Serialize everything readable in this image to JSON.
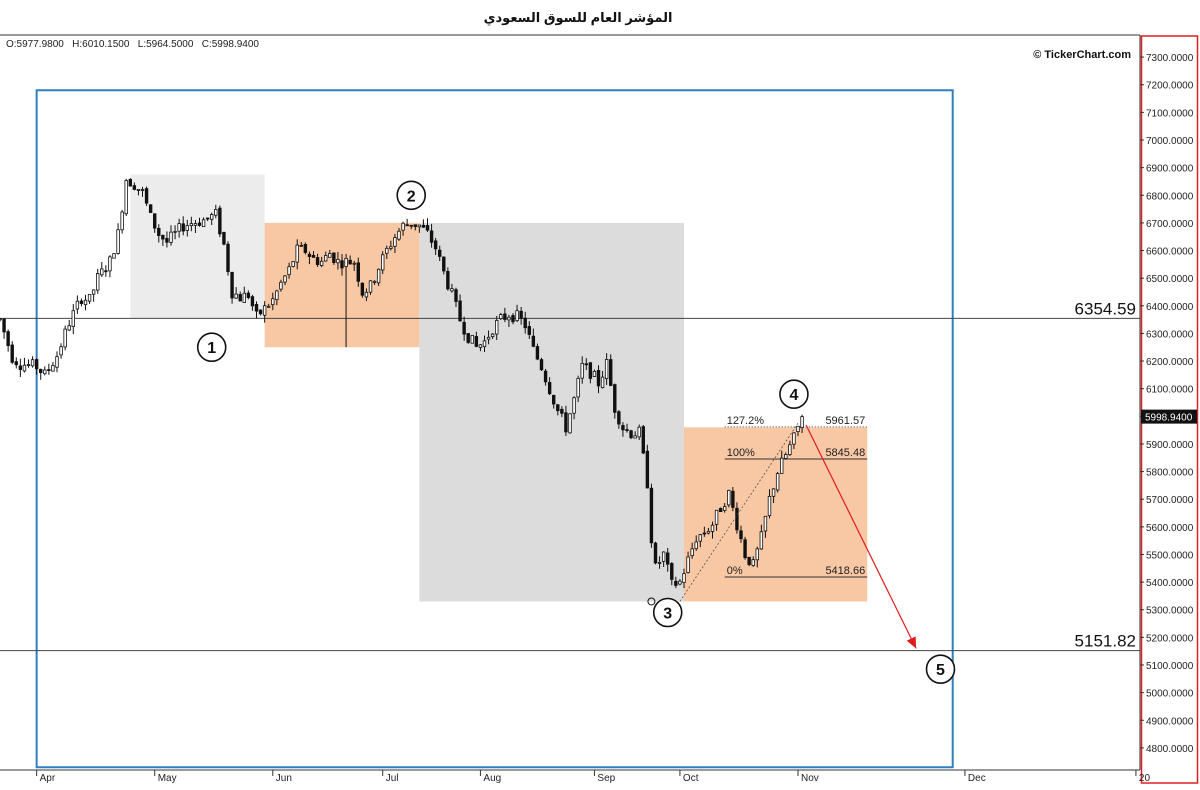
{
  "window": {
    "title": "المؤشر العام للسوق السعودي",
    "ohlc_readout": "O:5977.9800   H:6010.1500   L:5964.5000   C:5998.9400",
    "watermark": "© TickerChart.com"
  },
  "chart_data": {
    "type": "candlestick",
    "title": "المؤشر العام للسوق السعودي",
    "y_axis": {
      "ylim": [
        4720,
        7380
      ],
      "ticks": [
        4800,
        4900,
        5000,
        5100,
        5200,
        5300,
        5400,
        5500,
        5600,
        5700,
        5800,
        5900,
        6000,
        6100,
        6200,
        6300,
        6400,
        6500,
        6600,
        6700,
        6800,
        6900,
        7000,
        7100,
        7200,
        7300
      ],
      "tick_format": "4dec",
      "position": "right"
    },
    "x_axis": {
      "xlim": [
        0,
        280
      ],
      "months": [
        {
          "label": "Apr",
          "x": 9
        },
        {
          "label": "May",
          "x": 38
        },
        {
          "label": "Jun",
          "x": 67
        },
        {
          "label": "Jul",
          "x": 94
        },
        {
          "label": "Aug",
          "x": 118
        },
        {
          "label": "Sep",
          "x": 146
        },
        {
          "label": "Oct",
          "x": 167
        },
        {
          "label": "Nov",
          "x": 196
        },
        {
          "label": "Dec",
          "x": 237
        },
        {
          "label": "20",
          "x": 279
        }
      ]
    },
    "last_price": {
      "value": 5998.94,
      "label": "5998.9400"
    },
    "horizontal_levels": [
      {
        "value": 6354.59,
        "label": "6354.59"
      },
      {
        "value": 5151.82,
        "label": "5151.82"
      }
    ],
    "wave_labels": [
      {
        "text": "1",
        "x": 52,
        "y": 6250
      },
      {
        "text": "2",
        "x": 101,
        "y": 6800
      },
      {
        "text": "3",
        "x": 164,
        "y": 5290
      },
      {
        "text": "4",
        "x": 195,
        "y": 6080
      },
      {
        "text": "5",
        "x": 231,
        "y": 5085
      }
    ],
    "zones": [
      {
        "kind": "frame",
        "x1": 9,
        "x2": 234,
        "y1": 4730,
        "y2": 7180,
        "color": "#2f7fc1"
      },
      {
        "kind": "gray",
        "x1": 32,
        "x2": 65,
        "y1": 6354,
        "y2": 6875,
        "color": "#ececec"
      },
      {
        "kind": "orange",
        "x1": 65,
        "x2": 103,
        "y1": 6250,
        "y2": 6700,
        "color": "#f8c7a3"
      },
      {
        "kind": "gray",
        "x1": 103,
        "x2": 168,
        "y1": 5330,
        "y2": 6700,
        "color": "#dcdcdc"
      },
      {
        "kind": "orange",
        "x1": 168,
        "x2": 213,
        "y1": 5330,
        "y2": 5960,
        "color": "#f8c7a3"
      }
    ],
    "fibonacci": {
      "x1": 178,
      "x2": 213,
      "levels": [
        {
          "pct": "127.2%",
          "value": 5961.57,
          "label": "5961.57",
          "style": "dotted"
        },
        {
          "pct": "100%",
          "value": 5845.48,
          "label": "5845.48",
          "style": "solid"
        },
        {
          "pct": "0%",
          "value": 5418.66,
          "label": "5418.66",
          "style": "solid"
        }
      ]
    },
    "arrow": {
      "from": {
        "x": 198,
        "y": 5968
      },
      "to": {
        "x": 225,
        "y": 5160
      },
      "color": "#e11b1b"
    },
    "price_path": [
      [
        0,
        6350
      ],
      [
        3,
        6215
      ],
      [
        5,
        6190
      ],
      [
        9,
        6180
      ],
      [
        11,
        6150
      ],
      [
        14,
        6220
      ],
      [
        17,
        6340
      ],
      [
        20,
        6430
      ],
      [
        22,
        6420
      ],
      [
        24,
        6500
      ],
      [
        27,
        6560
      ],
      [
        29,
        6660
      ],
      [
        31,
        6860
      ],
      [
        33,
        6840
      ],
      [
        35,
        6810
      ],
      [
        37,
        6720
      ],
      [
        39,
        6660
      ],
      [
        41,
        6630
      ],
      [
        43,
        6660
      ],
      [
        45,
        6690
      ],
      [
        47,
        6700
      ],
      [
        50,
        6710
      ],
      [
        53,
        6730
      ],
      [
        55,
        6620
      ],
      [
        57,
        6450
      ],
      [
        59,
        6430
      ],
      [
        61,
        6440
      ],
      [
        63,
        6360
      ],
      [
        65,
        6390
      ],
      [
        67,
        6420
      ],
      [
        69,
        6480
      ],
      [
        71,
        6530
      ],
      [
        73,
        6600
      ],
      [
        75,
        6600
      ],
      [
        77,
        6570
      ],
      [
        79,
        6560
      ],
      [
        81,
        6590
      ],
      [
        83,
        6560
      ],
      [
        85,
        6560
      ],
      [
        87,
        6560
      ],
      [
        89,
        6450
      ],
      [
        91,
        6470
      ],
      [
        93,
        6540
      ],
      [
        95,
        6600
      ],
      [
        97,
        6650
      ],
      [
        99,
        6690
      ],
      [
        101,
        6700
      ],
      [
        103,
        6690
      ],
      [
        105,
        6660
      ],
      [
        107,
        6610
      ],
      [
        109,
        6520
      ],
      [
        111,
        6440
      ],
      [
        113,
        6350
      ],
      [
        115,
        6290
      ],
      [
        117,
        6250
      ],
      [
        119,
        6270
      ],
      [
        121,
        6320
      ],
      [
        123,
        6350
      ],
      [
        125,
        6370
      ],
      [
        127,
        6360
      ],
      [
        129,
        6330
      ],
      [
        131,
        6240
      ],
      [
        133,
        6180
      ],
      [
        135,
        6100
      ],
      [
        137,
        6020
      ],
      [
        139,
        5960
      ],
      [
        141,
        6060
      ],
      [
        143,
        6180
      ],
      [
        145,
        6160
      ],
      [
        147,
        6120
      ],
      [
        149,
        6190
      ],
      [
        151,
        6030
      ],
      [
        153,
        5960
      ],
      [
        155,
        5940
      ],
      [
        157,
        5940
      ],
      [
        159,
        5760
      ],
      [
        160,
        5560
      ],
      [
        161,
        5450
      ],
      [
        163,
        5500
      ],
      [
        165,
        5390
      ],
      [
        167,
        5400
      ],
      [
        169,
        5480
      ],
      [
        171,
        5560
      ],
      [
        173,
        5580
      ],
      [
        175,
        5610
      ],
      [
        177,
        5670
      ],
      [
        179,
        5720
      ],
      [
        181,
        5610
      ],
      [
        183,
        5500
      ],
      [
        185,
        5460
      ],
      [
        187,
        5560
      ],
      [
        189,
        5700
      ],
      [
        191,
        5800
      ],
      [
        193,
        5860
      ],
      [
        195,
        5920
      ],
      [
        197,
        5998.94
      ]
    ]
  }
}
